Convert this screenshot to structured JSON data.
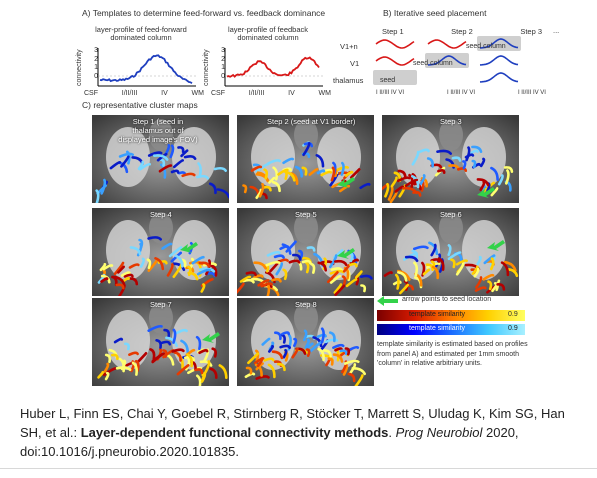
{
  "sectionA": {
    "title": "A) Templates to determine feed-forward vs. feedback dominance",
    "ff_title": "layer-profile of feed-forward dominated column",
    "fb_title": "layer-profile of feedback dominated column",
    "ylabel": "connectivity",
    "xticks": [
      "CSF",
      "I/II/III",
      "IV",
      "WM"
    ],
    "yticks": [
      "3",
      "2",
      "1",
      "0",
      "-1"
    ],
    "line_colors": {
      "feedforward": "#1f3fbf",
      "feedback": "#d81818"
    }
  },
  "sectionB": {
    "title": "B) Iterative seed placement",
    "steps": [
      "Step 1",
      "Step 2",
      "Step 3",
      "..."
    ],
    "rows": [
      "V1+n",
      "V1",
      "thalamus"
    ],
    "seed_labels": {
      "s1": "seed",
      "s2": "seed column",
      "s3": "seed column"
    },
    "axis": "I II/III IV VI"
  },
  "sectionC": {
    "title": "C) representative cluster maps",
    "panels": [
      {
        "label": "Step 1 (seed in thalamus out of displayed image's FOV)"
      },
      {
        "label": "Step 2 (seed at V1 border)"
      },
      {
        "label": "Step 3"
      },
      {
        "label": "Step 4"
      },
      {
        "label": "Step 5"
      },
      {
        "label": "Step 6"
      },
      {
        "label": "Step 7"
      },
      {
        "label": "Step 8"
      }
    ],
    "legend": {
      "arrow": "arrow points to seed location",
      "bar1": "template similarity",
      "bar2": "template similarity",
      "bar_max": "0.9",
      "note": "template similarity is estimated based on profiles from panel A) and estimated per 1mm smooth 'column' in relative arbitriary units."
    }
  },
  "citation": {
    "authors": "Huber L, Finn ES, Chai Y, Goebel R, Stirnberg R, Stöcker T, Marrett S, Uludag K, Kim SG, Han SH, et al.:",
    "title": "Layer-dependent functional connectivity methods",
    "journal": "Prog Neurobiol",
    "rest": "2020, doi:10.1016/j.pneurobio.2020.101835."
  }
}
